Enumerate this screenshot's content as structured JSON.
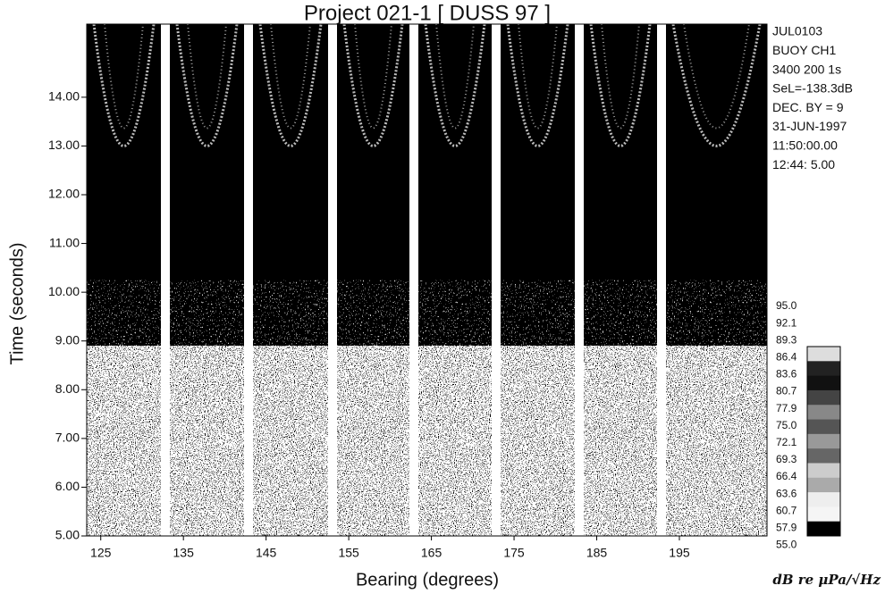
{
  "chart_data": {
    "type": "bearing-time",
    "title": "Project 021-1 [ DUSS 97 ]",
    "x_label": "Bearing (degrees)",
    "y_label": "Time (seconds)",
    "xlim": [
      123.3,
      205.6
    ],
    "xticks": [
      125,
      135,
      145,
      155,
      165,
      175,
      185,
      195
    ],
    "ylim": [
      5,
      15.5
    ],
    "yticks": [
      {
        "value": 5,
        "label": "5.00"
      },
      {
        "value": 6,
        "label": "6.00"
      },
      {
        "value": 7,
        "label": "7.00"
      },
      {
        "value": 8,
        "label": "8.00"
      },
      {
        "value": 9,
        "label": "9.00"
      },
      {
        "value": 10,
        "label": "10.00"
      },
      {
        "value": 11,
        "label": "11.00"
      },
      {
        "value": 12,
        "label": "12.00"
      },
      {
        "value": 13,
        "label": "13.00"
      },
      {
        "value": 14,
        "label": "14.00"
      }
    ],
    "info": [
      "JUL0103",
      "BUOY CH1",
      "3400 200 1s",
      "SeL=-138.3dB",
      "DEC. BY = 9",
      "31-JUN-1997",
      "11:50:00.00",
      "12:44: 5.00"
    ],
    "colorbar_ticks": [
      {
        "value": 95,
        "label": "95.0"
      },
      {
        "value": 92.1,
        "label": "92.1"
      },
      {
        "value": 89.3,
        "label": "89.3"
      },
      {
        "value": 86.4,
        "label": "86.4"
      },
      {
        "value": 83.6,
        "label": "83.6"
      },
      {
        "value": 80.7,
        "label": "80.7"
      },
      {
        "value": 77.9,
        "label": "77.9"
      },
      {
        "value": 75,
        "label": "75.0"
      },
      {
        "value": 72.1,
        "label": "72.1"
      },
      {
        "value": 69.3,
        "label": "69.3"
      },
      {
        "value": 66.4,
        "label": "66.4"
      },
      {
        "value": 63.6,
        "label": "63.6"
      },
      {
        "value": 60.7,
        "label": "60.7"
      },
      {
        "value": 57.9,
        "label": "57.9"
      },
      {
        "value": 55,
        "label": "55.0"
      }
    ],
    "colorbar_unit": "dB re μPa/√Hz"
  }
}
